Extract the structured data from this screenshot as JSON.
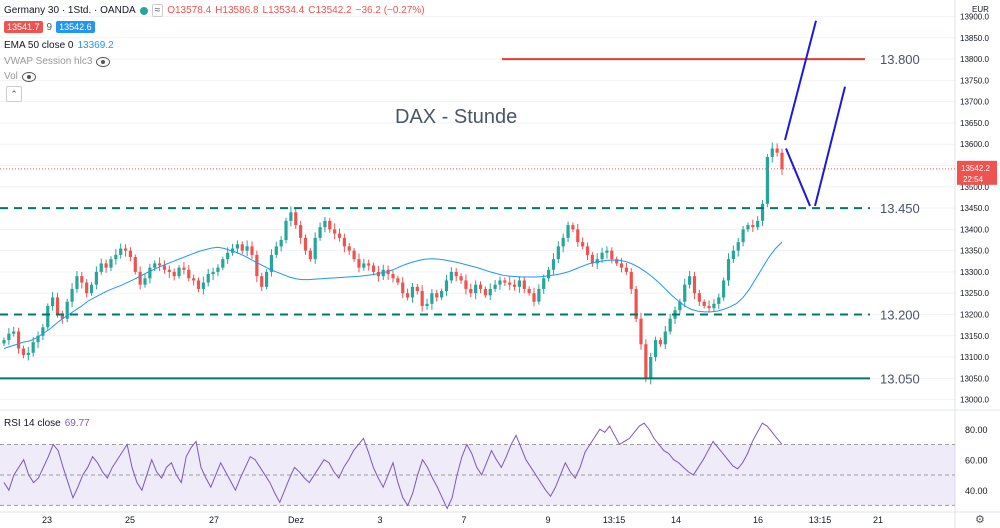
{
  "header": {
    "symbol": "Germany 30 · 1Std. · OANDA",
    "open": "O13578.4",
    "high": "H13586.8",
    "low": "L13534.4",
    "close": "C13542.2",
    "change": "−36.2 (−0.27%)",
    "bid": "13541.7",
    "spread": "9",
    "ask": "13542.6",
    "wave_icon": "≈"
  },
  "indicators": {
    "ema": "EMA 50 close 0",
    "ema_value": "13369.2",
    "vwap": "VWAP Session hlc3",
    "vol": "Vol"
  },
  "rsi": {
    "label": "RSI 14 close",
    "value": "69.77"
  },
  "chart_title": "DAX - Stunde",
  "levels": [
    {
      "label": "13.800",
      "value": 13800,
      "color": "#e53935",
      "style": "solid"
    },
    {
      "label": "13.450",
      "value": 13450,
      "color": "#00796b",
      "style": "dashed"
    },
    {
      "label": "13.200",
      "value": 13200,
      "color": "#00796b",
      "style": "dashed"
    },
    {
      "label": "13.050",
      "value": 13050,
      "color": "#00796b",
      "style": "solid"
    }
  ],
  "price_axis": {
    "currency": "EUR",
    "ticks": [
      "13900.0",
      "13850.0",
      "13800.0",
      "13750.0",
      "13700.0",
      "13650.0",
      "13600.0",
      "13550.0",
      "13500.0",
      "13450.0",
      "13400.0",
      "13350.0",
      "13300.0",
      "13250.0",
      "13200.0",
      "13150.0",
      "13100.0",
      "13050.0",
      "13000.0"
    ],
    "last_price": "13542.2",
    "countdown": "22:54"
  },
  "rsi_axis": {
    "ticks": [
      "80.00",
      "60.00",
      "40.00"
    ]
  },
  "time_axis": [
    "23",
    "25",
    "27",
    "Dez",
    "3",
    "7",
    "9",
    "13:15",
    "14",
    "16",
    "13:15",
    "21"
  ],
  "colors": {
    "up": "#26a69a",
    "down": "#ef5350",
    "ema": "#2196f3",
    "rsi": "#7e57c2",
    "projection": "#1a1adb",
    "badge_bid": "#ef5350",
    "badge_ask": "#2196f3"
  },
  "chart_data": {
    "type": "candlestick",
    "ylim": [
      12985,
      13920
    ],
    "rsi_ylim": [
      27,
      90
    ],
    "closes": [
      13140,
      13155,
      13160,
      13120,
      13105,
      13110,
      13135,
      13150,
      13170,
      13220,
      13240,
      13200,
      13190,
      13230,
      13260,
      13290,
      13275,
      13250,
      13270,
      13300,
      13320,
      13310,
      13330,
      13340,
      13355,
      13350,
      13335,
      13300,
      13270,
      13285,
      13310,
      13320,
      13315,
      13305,
      13300,
      13290,
      13310,
      13305,
      13285,
      13280,
      13260,
      13275,
      13295,
      13300,
      13310,
      13330,
      13345,
      13355,
      13365,
      13350,
      13360,
      13340,
      13290,
      13265,
      13300,
      13340,
      13360,
      13375,
      13420,
      13440,
      13410,
      13380,
      13350,
      13330,
      13380,
      13405,
      13420,
      13400,
      13390,
      13380,
      13360,
      13350,
      13330,
      13310,
      13320,
      13315,
      13300,
      13290,
      13305,
      13295,
      13285,
      13275,
      13250,
      13240,
      13265,
      13255,
      13220,
      13225,
      13250,
      13240,
      13255,
      13280,
      13300,
      13290,
      13280,
      13260,
      13250,
      13270,
      13260,
      13245,
      13260,
      13270,
      13280,
      13275,
      13270,
      13265,
      13280,
      13260,
      13250,
      13230,
      13260,
      13285,
      13305,
      13330,
      13360,
      13380,
      13410,
      13400,
      13370,
      13360,
      13340,
      13320,
      13330,
      13345,
      13350,
      13330,
      13320,
      13310,
      13300,
      13260,
      13190,
      13130,
      13050,
      13100,
      13140,
      13130,
      13160,
      13190,
      13210,
      13230,
      13270,
      13290,
      13250,
      13230,
      13220,
      13215,
      13225,
      13240,
      13280,
      13330,
      13350,
      13370,
      13400,
      13410,
      13405,
      13420,
      13460,
      13570,
      13590,
      13580,
      13542
    ],
    "ema50": [
      13120,
      13125,
      13130,
      13135,
      13138,
      13145,
      13155,
      13165,
      13178,
      13190,
      13200,
      13210,
      13220,
      13232,
      13240,
      13248,
      13256,
      13262,
      13268,
      13275,
      13282,
      13290,
      13298,
      13305,
      13312,
      13318,
      13324,
      13330,
      13336,
      13342,
      13348,
      13352,
      13356,
      13358,
      13355,
      13350,
      13345,
      13338,
      13330,
      13322,
      13314,
      13306,
      13300,
      13294,
      13288,
      13284,
      13282,
      13282,
      13283,
      13284,
      13285,
      13286,
      13287,
      13288,
      13289,
      13290,
      13292,
      13294,
      13297,
      13300,
      13305,
      13312,
      13318,
      13323,
      13327,
      13330,
      13331,
      13330,
      13328,
      13325,
      13322,
      13318,
      13314,
      13310,
      13305,
      13300,
      13296,
      13292,
      13290,
      13289,
      13288,
      13288,
      13288,
      13289,
      13291,
      13293,
      13296,
      13300,
      13306,
      13312,
      13318,
      13322,
      13325,
      13327,
      13328,
      13327,
      13324,
      13318,
      13310,
      13300,
      13288,
      13275,
      13260,
      13245,
      13232,
      13220,
      13212,
      13208,
      13206,
      13206,
      13208,
      13212,
      13218,
      13226,
      13240,
      13260,
      13285,
      13310,
      13335,
      13355,
      13370
    ],
    "rsi": [
      45,
      40,
      50,
      55,
      60,
      50,
      45,
      48,
      55,
      62,
      70,
      66,
      55,
      45,
      35,
      42,
      50,
      55,
      62,
      58,
      52,
      48,
      55,
      60,
      65,
      70,
      55,
      45,
      40,
      50,
      60,
      52,
      48,
      55,
      58,
      50,
      45,
      62,
      68,
      72,
      55,
      48,
      42,
      50,
      58,
      52,
      46,
      40,
      48,
      55,
      62,
      60,
      55,
      50,
      45,
      38,
      32,
      40,
      48,
      55,
      52,
      48,
      45,
      50,
      55,
      60,
      58,
      52,
      48,
      55,
      60,
      66,
      70,
      74,
      65,
      55,
      48,
      42,
      50,
      58,
      45,
      35,
      30,
      38,
      50,
      60,
      55,
      48,
      42,
      35,
      28,
      35,
      50,
      62,
      70,
      64,
      55,
      50,
      58,
      66,
      60,
      55,
      62,
      70,
      76,
      68,
      60,
      55,
      50,
      45,
      40,
      36,
      42,
      50,
      58,
      52,
      48,
      55,
      65,
      70,
      75,
      80,
      78,
      82,
      76,
      70,
      72,
      74,
      78,
      82,
      84,
      80,
      74,
      70,
      66,
      64,
      60,
      58,
      55,
      52,
      50,
      55,
      60,
      66,
      72,
      68,
      64,
      60,
      56,
      54,
      58,
      64,
      72,
      78,
      84,
      82,
      78,
      74,
      70
    ]
  }
}
